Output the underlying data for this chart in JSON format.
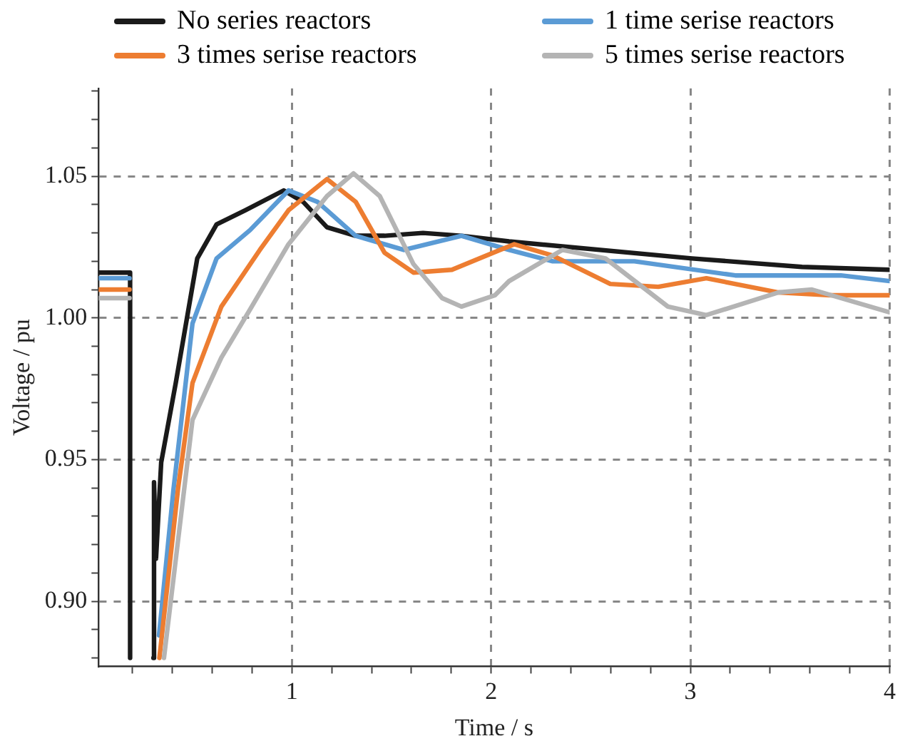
{
  "chart_data": {
    "type": "line",
    "xlabel": "Time / s",
    "ylabel": "Voltage / pu",
    "xlim": [
      0.03,
      4
    ],
    "ylim": [
      0.877,
      1.081
    ],
    "xticks": [
      {
        "value": 0.2,
        "label": null
      },
      {
        "value": 0.4,
        "label": null
      },
      {
        "value": 0.6,
        "label": null
      },
      {
        "value": 0.8,
        "label": null
      },
      1,
      {
        "value": 1.2,
        "label": null
      },
      {
        "value": 1.4,
        "label": null
      },
      {
        "value": 1.6,
        "label": null
      },
      {
        "value": 1.8,
        "label": null
      },
      2,
      {
        "value": 2.2,
        "label": null
      },
      {
        "value": 2.4,
        "label": null
      },
      {
        "value": 2.6,
        "label": null
      },
      {
        "value": 2.8,
        "label": null
      },
      3,
      {
        "value": 3.2,
        "label": null
      },
      {
        "value": 3.4,
        "label": null
      },
      {
        "value": 3.6,
        "label": null
      },
      {
        "value": 3.8,
        "label": null
      },
      4
    ],
    "yticks": [
      {
        "value": 0.88,
        "label": null
      },
      {
        "value": 0.89,
        "label": null
      },
      {
        "value": 0.9,
        "label": "0.90"
      },
      {
        "value": 0.91,
        "label": null
      },
      {
        "value": 0.92,
        "label": null
      },
      {
        "value": 0.93,
        "label": null
      },
      {
        "value": 0.94,
        "label": null
      },
      {
        "value": 0.95,
        "label": "0.95"
      },
      {
        "value": 0.96,
        "label": null
      },
      {
        "value": 0.97,
        "label": null
      },
      {
        "value": 0.98,
        "label": null
      },
      {
        "value": 0.99,
        "label": null
      },
      {
        "value": 1.0,
        "label": "1.00"
      },
      {
        "value": 1.01,
        "label": null
      },
      {
        "value": 1.02,
        "label": null
      },
      {
        "value": 1.03,
        "label": null
      },
      {
        "value": 1.04,
        "label": null
      },
      {
        "value": 1.05,
        "label": "1.05"
      },
      {
        "value": 1.06,
        "label": null
      },
      {
        "value": 1.07,
        "label": null
      },
      {
        "value": 1.08,
        "label": null
      }
    ],
    "grid": true,
    "legend": "top",
    "marker": "none",
    "line_style": "solid",
    "series": [
      {
        "name": "5 times serise reactors",
        "color": "#b4b4b4",
        "x": [
          0.03,
          0.185,
          0.2,
          0.358,
          0.501,
          0.646,
          0.79,
          0.983,
          1.176,
          1.309,
          1.441,
          1.61,
          1.754,
          1.851,
          2.019,
          2.09,
          2.357,
          2.574,
          2.887,
          3.08,
          3.442,
          3.61,
          4.0
        ],
        "values": [
          1.007,
          1.007,
          null,
          0.88,
          0.964,
          0.986,
          1.003,
          1.026,
          1.043,
          1.051,
          1.043,
          1.019,
          1.007,
          1.004,
          1.008,
          1.013,
          1.024,
          1.021,
          1.004,
          1.001,
          1.009,
          1.01,
          1.002
        ]
      },
      {
        "name": "3 times serise reactors",
        "color": "#ed7d31",
        "x": [
          0.03,
          0.185,
          0.2,
          0.335,
          0.429,
          0.501,
          0.646,
          0.839,
          0.983,
          1.176,
          1.32,
          1.465,
          1.61,
          1.803,
          2.044,
          2.116,
          2.309,
          2.598,
          2.839,
          3.08,
          3.442,
          3.706,
          4.0
        ],
        "values": [
          1.01,
          1.01,
          null,
          0.88,
          0.94,
          0.977,
          1.004,
          1.024,
          1.038,
          1.049,
          1.041,
          1.023,
          1.016,
          1.017,
          1.024,
          1.026,
          1.022,
          1.012,
          1.011,
          1.014,
          1.009,
          1.008,
          1.008
        ]
      },
      {
        "name": "1 time serise reactors",
        "color": "#5b9bd5",
        "x": [
          0.03,
          0.185,
          0.2,
          0.333,
          0.405,
          0.501,
          0.622,
          0.79,
          0.983,
          1.128,
          1.32,
          1.562,
          1.851,
          2.09,
          2.309,
          2.719,
          3.225,
          3.755,
          4.0
        ],
        "values": [
          1.014,
          1.014,
          null,
          0.888,
          0.939,
          0.998,
          1.021,
          1.031,
          1.045,
          1.041,
          1.029,
          1.024,
          1.029,
          1.024,
          1.02,
          1.02,
          1.015,
          1.015,
          1.013
        ]
      },
      {
        "name": "No series reactors",
        "color": "#1a1a1a",
        "x": [
          0.03,
          0.188,
          0.188,
          0.2,
          0.305,
          0.308,
          0.318,
          0.344,
          0.417,
          0.525,
          0.622,
          0.766,
          0.959,
          1.056,
          1.176,
          1.32,
          1.465,
          1.658,
          1.851,
          2.09,
          3.008,
          3.56,
          4.0
        ],
        "values": [
          1.016,
          1.016,
          0.88,
          null,
          0.88,
          0.942,
          0.915,
          0.949,
          0.977,
          1.021,
          1.033,
          1.038,
          1.045,
          1.041,
          1.032,
          1.029,
          1.029,
          1.03,
          1.029,
          1.027,
          1.021,
          1.018,
          1.017
        ]
      }
    ]
  }
}
